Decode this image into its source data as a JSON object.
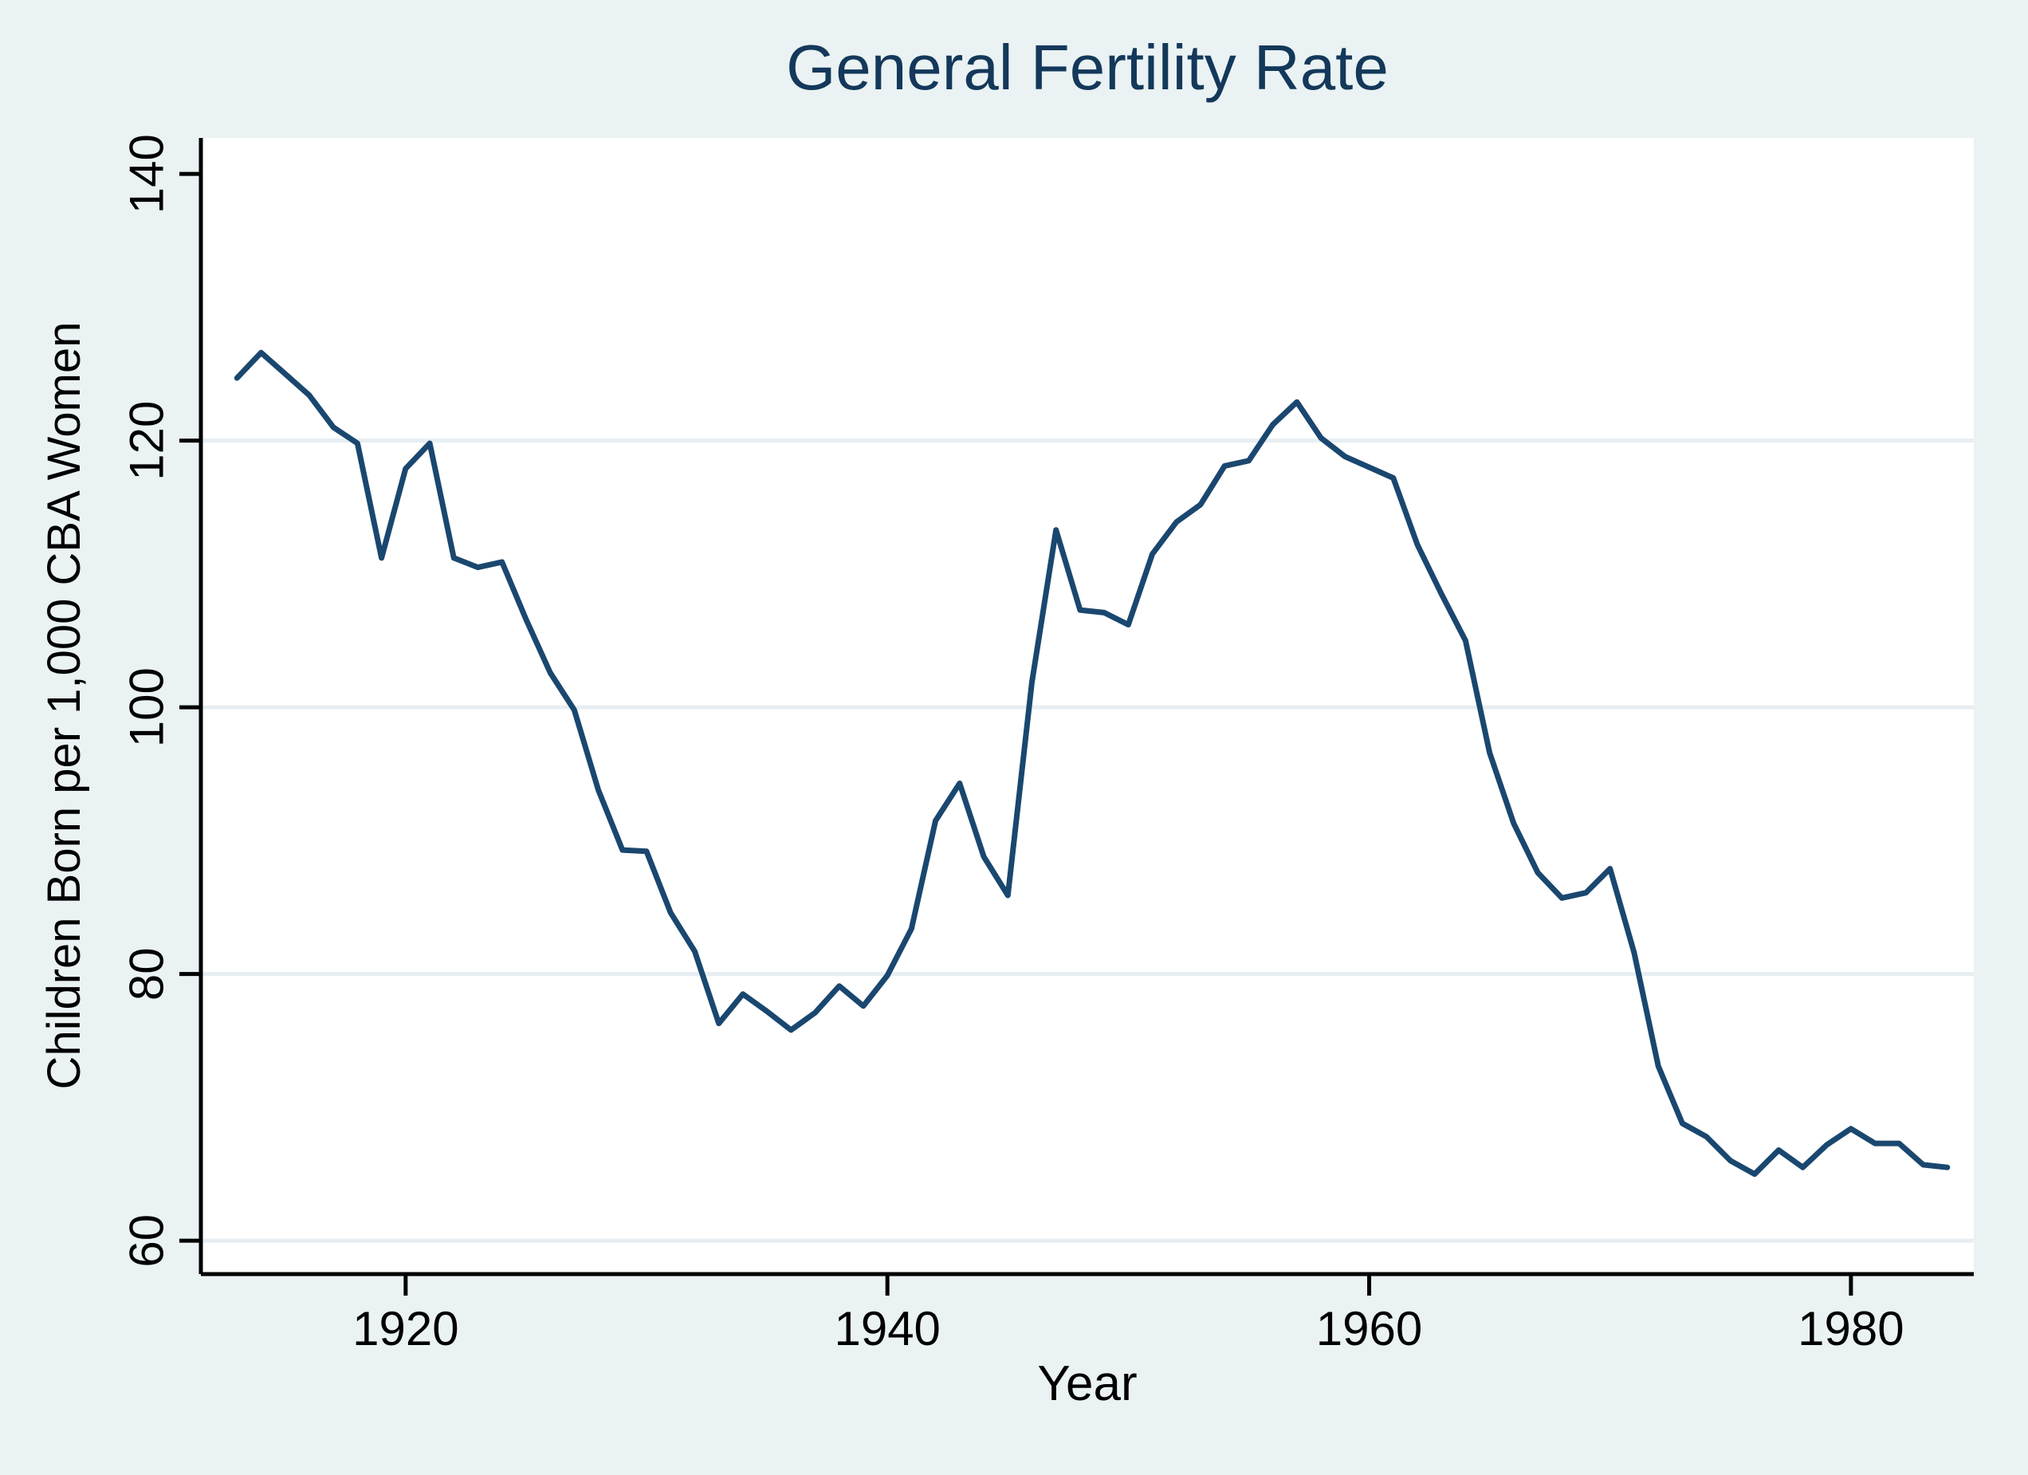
{
  "chart_data": {
    "type": "line",
    "title": "General Fertility Rate",
    "xlabel": "Year",
    "ylabel": "Children Born per 1,000 CBA Women",
    "x_ticks": [
      1920,
      1940,
      1960,
      1980
    ],
    "y_ticks": [
      60,
      80,
      100,
      120,
      140
    ],
    "y_gridlines": [
      60,
      80,
      100,
      120
    ],
    "xlim": [
      1911.5,
      1985.1
    ],
    "ylim": [
      57.5,
      142.7
    ],
    "grid": "horizontal-only",
    "legend": "none",
    "x": [
      1913,
      1914,
      1915,
      1916,
      1917,
      1918,
      1919,
      1920,
      1921,
      1922,
      1923,
      1924,
      1925,
      1926,
      1927,
      1928,
      1929,
      1930,
      1931,
      1932,
      1933,
      1934,
      1935,
      1936,
      1937,
      1938,
      1939,
      1940,
      1941,
      1942,
      1943,
      1944,
      1945,
      1946,
      1947,
      1948,
      1949,
      1950,
      1951,
      1952,
      1953,
      1954,
      1955,
      1956,
      1957,
      1958,
      1959,
      1960,
      1961,
      1962,
      1963,
      1964,
      1965,
      1966,
      1967,
      1968,
      1969,
      1970,
      1971,
      1972,
      1973,
      1974,
      1975,
      1976,
      1977,
      1978,
      1979,
      1980,
      1981,
      1982,
      1983,
      1984
    ],
    "values": [
      124.7,
      126.6,
      125.0,
      123.4,
      121.0,
      119.8,
      111.2,
      117.9,
      119.8,
      111.2,
      110.5,
      110.9,
      106.6,
      102.6,
      99.8,
      93.8,
      89.3,
      89.2,
      84.6,
      81.7,
      76.3,
      78.5,
      77.2,
      75.8,
      77.1,
      79.1,
      77.6,
      79.9,
      83.4,
      91.5,
      94.3,
      88.8,
      85.9,
      101.9,
      113.3,
      107.3,
      107.1,
      106.2,
      111.5,
      113.9,
      115.2,
      118.1,
      118.5,
      121.2,
      122.9,
      120.2,
      118.8,
      118.0,
      117.2,
      112.2,
      108.5,
      105.0,
      96.6,
      91.3,
      87.6,
      85.7,
      86.1,
      87.9,
      81.6,
      73.1,
      68.8,
      67.8,
      66.0,
      65.0,
      66.8,
      65.5,
      67.2,
      68.4,
      67.3,
      67.3,
      65.7,
      65.5
    ],
    "colors": {
      "line": "#1a476f",
      "title": "#13385a",
      "background": "#eaf2f3",
      "plot_background": "#ffffff",
      "gridline": "#e6eef3",
      "axis": "#000000"
    }
  }
}
